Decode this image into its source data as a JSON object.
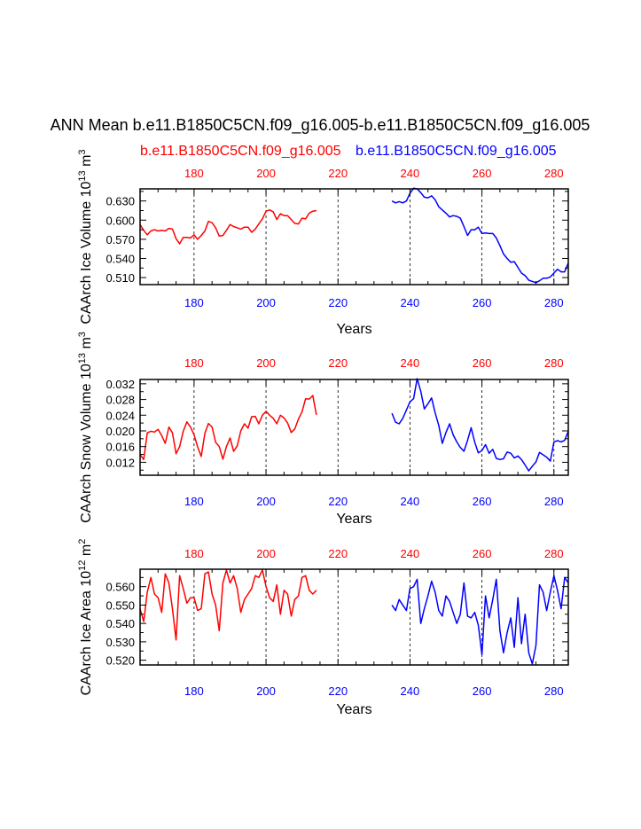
{
  "title": "ANN Mean b.e11.B1850C5CN.f09_g16.005-b.e11.B1850C5CN.f09_g16.005",
  "legend": {
    "case1": "b.e11.B1850C5CN.f09_g16.005",
    "case2": "b.e11.B1850C5CN.f09_g16.005"
  },
  "colors": {
    "case1": "#ff0000",
    "case2": "#0000ff",
    "axis": "#000000",
    "grid": "#000000"
  },
  "chart_data": [
    {
      "type": "line",
      "ylabel": "CAArch Ice Volume 10^13 m^3",
      "xlabel": "Years",
      "xlim": [
        165,
        284
      ],
      "ylim": [
        0.499,
        0.649
      ],
      "yticks": [
        "0.510",
        "0.540",
        "0.570",
        "0.600",
        "0.630"
      ],
      "xticks": [
        "180",
        "200",
        "220",
        "240",
        "260",
        "280"
      ],
      "grid_x": true,
      "series": [
        {
          "name": "case1",
          "x": [
            165,
            166,
            167,
            168,
            169,
            170,
            171,
            172,
            173,
            174,
            175,
            176,
            177,
            178,
            179,
            180,
            181,
            182,
            183,
            184,
            185,
            186,
            187,
            188,
            189,
            190,
            191,
            192,
            193,
            194,
            195,
            196,
            197,
            198,
            199,
            200,
            201,
            202,
            203,
            204,
            205,
            206,
            207,
            208,
            209,
            210,
            211,
            212,
            213,
            214
          ],
          "values": [
            0.593,
            0.584,
            0.577,
            0.583,
            0.585,
            0.583,
            0.584,
            0.583,
            0.587,
            0.586,
            0.571,
            0.563,
            0.573,
            0.573,
            0.572,
            0.577,
            0.57,
            0.576,
            0.583,
            0.598,
            0.596,
            0.588,
            0.575,
            0.576,
            0.584,
            0.593,
            0.59,
            0.588,
            0.586,
            0.589,
            0.589,
            0.581,
            0.586,
            0.594,
            0.602,
            0.614,
            0.616,
            0.613,
            0.601,
            0.61,
            0.607,
            0.607,
            0.601,
            0.595,
            0.594,
            0.603,
            0.602,
            0.611,
            0.614,
            0.615
          ]
        },
        {
          "name": "case2",
          "x": [
            235,
            236,
            237,
            238,
            239,
            240,
            241,
            242,
            243,
            244,
            245,
            246,
            247,
            248,
            249,
            250,
            251,
            252,
            253,
            254,
            255,
            256,
            257,
            258,
            259,
            260,
            261,
            262,
            263,
            264,
            265,
            266,
            267,
            268,
            269,
            270,
            271,
            272,
            273,
            274,
            275,
            276,
            277,
            278,
            279,
            280,
            281,
            282,
            283,
            284
          ],
          "values": [
            0.63,
            0.627,
            0.629,
            0.627,
            0.63,
            0.642,
            0.65,
            0.649,
            0.643,
            0.636,
            0.635,
            0.638,
            0.632,
            0.621,
            0.616,
            0.611,
            0.605,
            0.607,
            0.606,
            0.603,
            0.59,
            0.576,
            0.585,
            0.585,
            0.589,
            0.579,
            0.58,
            0.579,
            0.579,
            0.572,
            0.56,
            0.547,
            0.54,
            0.534,
            0.535,
            0.526,
            0.517,
            0.513,
            0.506,
            0.504,
            0.502,
            0.505,
            0.509,
            0.509,
            0.511,
            0.517,
            0.523,
            0.519,
            0.519,
            0.533
          ]
        }
      ]
    },
    {
      "type": "line",
      "ylabel": "CAArch Snow Volume 10^13 m^3",
      "xlabel": "Years",
      "xlim": [
        165,
        284
      ],
      "ylim": [
        0.0087,
        0.0331
      ],
      "yticks": [
        "0.012",
        "0.016",
        "0.020",
        "0.024",
        "0.028",
        "0.032"
      ],
      "xticks": [
        "180",
        "200",
        "220",
        "240",
        "260",
        "280"
      ],
      "grid_x": true,
      "series": [
        {
          "name": "case1",
          "x": [
            165,
            166,
            167,
            168,
            169,
            170,
            171,
            172,
            173,
            174,
            175,
            176,
            177,
            178,
            179,
            180,
            181,
            182,
            183,
            184,
            185,
            186,
            187,
            188,
            189,
            190,
            191,
            192,
            193,
            194,
            195,
            196,
            197,
            198,
            199,
            200,
            201,
            202,
            203,
            204,
            205,
            206,
            207,
            208,
            209,
            210,
            211,
            212,
            213,
            214
          ],
          "values": [
            0.014,
            0.0127,
            0.0195,
            0.0199,
            0.0197,
            0.0204,
            0.0188,
            0.0168,
            0.021,
            0.0195,
            0.0142,
            0.016,
            0.0199,
            0.0223,
            0.021,
            0.019,
            0.0159,
            0.0135,
            0.0194,
            0.0219,
            0.021,
            0.0171,
            0.016,
            0.0128,
            0.016,
            0.0182,
            0.0148,
            0.0162,
            0.02,
            0.0218,
            0.0207,
            0.0236,
            0.0237,
            0.0218,
            0.024,
            0.025,
            0.024,
            0.0232,
            0.0218,
            0.024,
            0.0233,
            0.022,
            0.0196,
            0.0205,
            0.023,
            0.0248,
            0.0282,
            0.0281,
            0.029,
            0.0241
          ]
        },
        {
          "name": "case2",
          "x": [
            235,
            236,
            237,
            238,
            239,
            240,
            241,
            242,
            243,
            244,
            245,
            246,
            247,
            248,
            249,
            250,
            251,
            252,
            253,
            254,
            255,
            256,
            257,
            258,
            259,
            260,
            261,
            262,
            263,
            264,
            265,
            266,
            267,
            268,
            269,
            270,
            271,
            272,
            273,
            274,
            275,
            276,
            277,
            278,
            279,
            280,
            281,
            282,
            283,
            284
          ],
          "values": [
            0.0245,
            0.0222,
            0.0218,
            0.0232,
            0.0253,
            0.0274,
            0.0282,
            0.0333,
            0.0301,
            0.0256,
            0.0269,
            0.0284,
            0.0246,
            0.0214,
            0.0168,
            0.0196,
            0.0218,
            0.019,
            0.0172,
            0.0158,
            0.0148,
            0.0176,
            0.0208,
            0.0171,
            0.0144,
            0.015,
            0.0165,
            0.0143,
            0.0153,
            0.013,
            0.0127,
            0.0129,
            0.0146,
            0.0143,
            0.0131,
            0.0136,
            0.0127,
            0.0113,
            0.0098,
            0.011,
            0.0121,
            0.0145,
            0.0139,
            0.0133,
            0.0123,
            0.0172,
            0.0175,
            0.0172,
            0.0176,
            0.0199
          ]
        }
      ]
    },
    {
      "type": "line",
      "ylabel": "CAArch Ice Area 10^12 m^2",
      "xlabel": "Years",
      "xlim": [
        165,
        284
      ],
      "ylim": [
        0.5174,
        0.5695
      ],
      "yticks": [
        "0.520",
        "0.530",
        "0.540",
        "0.550",
        "0.560"
      ],
      "xticks": [
        "180",
        "200",
        "220",
        "240",
        "260",
        "280"
      ],
      "grid_x": true,
      "series": [
        {
          "name": "case1",
          "x": [
            165,
            166,
            167,
            168,
            169,
            170,
            171,
            172,
            173,
            174,
            175,
            176,
            177,
            178,
            179,
            180,
            181,
            182,
            183,
            184,
            185,
            186,
            187,
            188,
            189,
            190,
            191,
            192,
            193,
            194,
            195,
            196,
            197,
            198,
            199,
            200,
            201,
            202,
            203,
            204,
            205,
            206,
            207,
            208,
            209,
            210,
            211,
            212,
            213,
            214
          ],
          "values": [
            0.548,
            0.541,
            0.557,
            0.565,
            0.556,
            0.554,
            0.546,
            0.567,
            0.562,
            0.548,
            0.531,
            0.566,
            0.559,
            0.551,
            0.554,
            0.554,
            0.547,
            0.548,
            0.567,
            0.568,
            0.556,
            0.55,
            0.536,
            0.562,
            0.569,
            0.562,
            0.566,
            0.559,
            0.546,
            0.553,
            0.556,
            0.559,
            0.566,
            0.565,
            0.569,
            0.56,
            0.554,
            0.552,
            0.561,
            0.545,
            0.558,
            0.556,
            0.544,
            0.553,
            0.555,
            0.565,
            0.566,
            0.558,
            0.556,
            0.558
          ]
        },
        {
          "name": "case2",
          "x": [
            235,
            236,
            237,
            238,
            239,
            240,
            241,
            242,
            243,
            244,
            245,
            246,
            247,
            248,
            249,
            250,
            251,
            252,
            253,
            254,
            255,
            256,
            257,
            258,
            259,
            260,
            261,
            262,
            263,
            264,
            265,
            266,
            267,
            268,
            269,
            270,
            271,
            272,
            273,
            274,
            275,
            276,
            277,
            278,
            279,
            280,
            281,
            282,
            283,
            284
          ],
          "values": [
            0.55,
            0.547,
            0.553,
            0.55,
            0.547,
            0.559,
            0.56,
            0.564,
            0.54,
            0.548,
            0.555,
            0.563,
            0.557,
            0.547,
            0.544,
            0.555,
            0.552,
            0.546,
            0.54,
            0.545,
            0.562,
            0.544,
            0.543,
            0.546,
            0.539,
            0.523,
            0.555,
            0.543,
            0.553,
            0.564,
            0.536,
            0.524,
            0.535,
            0.543,
            0.527,
            0.554,
            0.529,
            0.545,
            0.524,
            0.518,
            0.528,
            0.561,
            0.557,
            0.547,
            0.557,
            0.566,
            0.558,
            0.548,
            0.565,
            0.562
          ]
        }
      ]
    }
  ]
}
